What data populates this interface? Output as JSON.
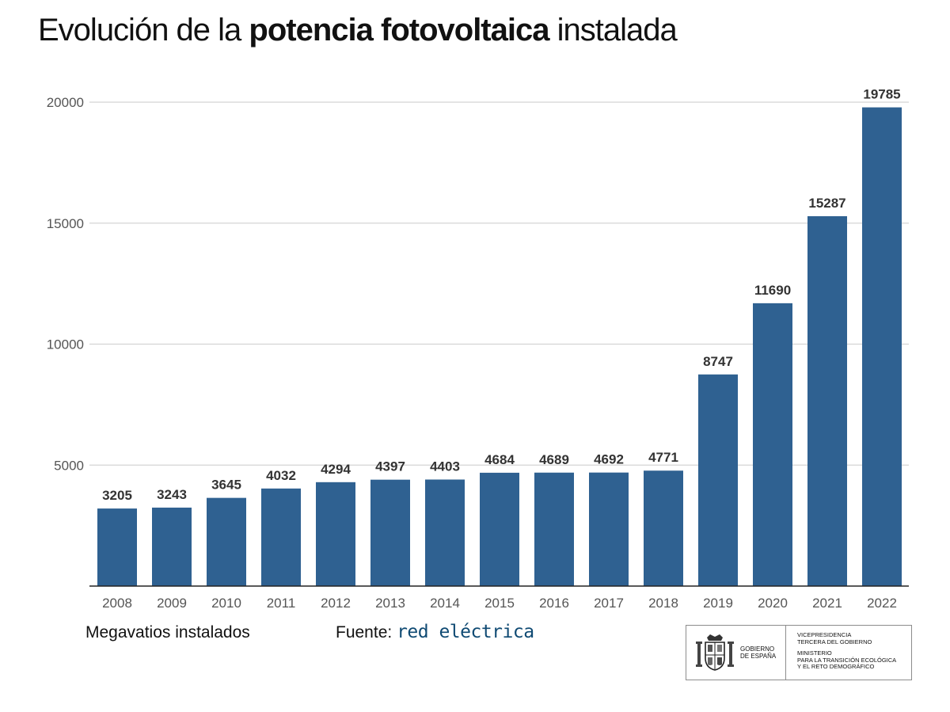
{
  "title": {
    "prefix": "Evolución de la",
    "bold": "potencia fotovoltaica",
    "suffix": "instalada"
  },
  "chart_data": {
    "type": "bar",
    "title": "Evolución de la potencia fotovoltaica instalada",
    "xlabel": "",
    "ylabel": "Megavatios instalados",
    "ylim": [
      0,
      20000
    ],
    "yticks": [
      5000,
      10000,
      15000,
      20000
    ],
    "categories": [
      "2008",
      "2009",
      "2010",
      "2011",
      "2012",
      "2013",
      "2014",
      "2015",
      "2016",
      "2017",
      "2018",
      "2019",
      "2020",
      "2021",
      "2022"
    ],
    "values": [
      3205,
      3243,
      3645,
      4032,
      4294,
      4397,
      4403,
      4684,
      4689,
      4692,
      4771,
      8747,
      11690,
      15287,
      19785
    ],
    "grid": true,
    "legend": "none"
  },
  "colors": {
    "bar": "#2f6191",
    "grid": "#d4d4d4",
    "axis": "#222222",
    "tick_text": "#555555",
    "label_text": "#333333",
    "source_brand": "#0f4a73"
  },
  "footer": {
    "unit_label": "Megavatios instalados",
    "source_prefix": "Fuente:",
    "source_name": "red eléctrica"
  },
  "government": {
    "emblem": "spain-coat-of-arms-icon",
    "name": "GOBIERNO\nDE ESPAÑA",
    "vice": "VICEPRESIDENCIA\nTERCERA DEL GOBIERNO",
    "ministry": "MINISTERIO\nPARA LA TRANSICIÓN ECOLÓGICA\nY EL RETO DEMOGRÁFICO"
  }
}
